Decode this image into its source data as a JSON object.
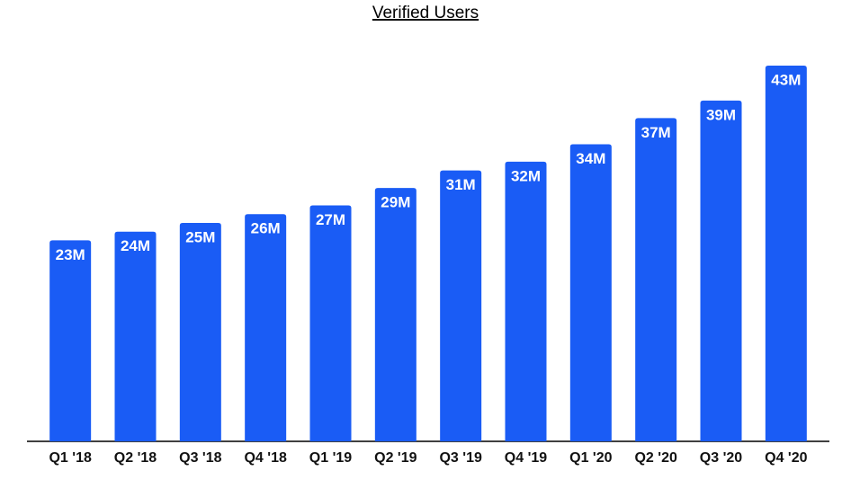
{
  "chart_data": {
    "type": "bar",
    "title": "Verified Users",
    "categories": [
      "Q1 '18",
      "Q2 '18",
      "Q3 '18",
      "Q4 '18",
      "Q1 '19",
      "Q2 '19",
      "Q3 '19",
      "Q4 '19",
      "Q1 '20",
      "Q2 '20",
      "Q3 '20",
      "Q4 '20"
    ],
    "values": [
      23,
      24,
      25,
      26,
      27,
      29,
      31,
      32,
      34,
      37,
      39,
      43
    ],
    "value_labels": [
      "23M",
      "24M",
      "25M",
      "26M",
      "27M",
      "29M",
      "31M",
      "32M",
      "34M",
      "37M",
      "39M",
      "43M"
    ],
    "color": "#1a5cf5"
  }
}
